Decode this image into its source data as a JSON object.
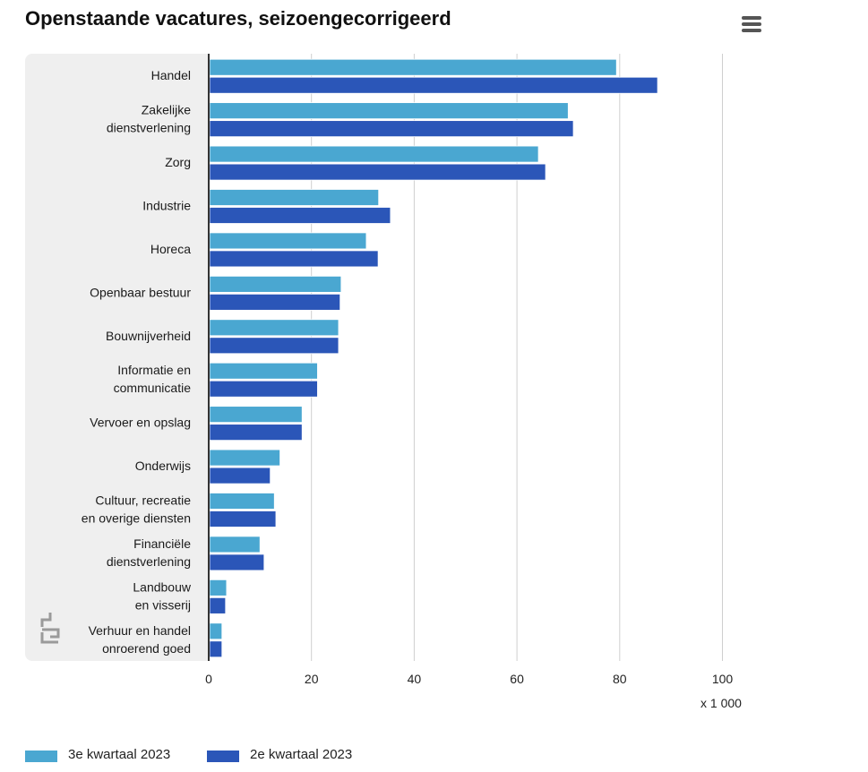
{
  "title": "Openstaande vacatures, seizoengecorrigeerd",
  "unit": "x 1 000",
  "colors": {
    "series1": "#4aa7d1",
    "series2": "#2b56b8",
    "panel": "#efefef",
    "grid": "#cfcfcf",
    "axis": "#333333"
  },
  "icons": {
    "menu": "hamburger-menu-icon",
    "logo": "cbs-logo"
  },
  "chart_data": {
    "type": "bar",
    "orientation": "horizontal",
    "categories": [
      [
        "Handel"
      ],
      [
        "Zakelijke",
        "dienstverlening"
      ],
      [
        "Zorg"
      ],
      [
        "Industrie"
      ],
      [
        "Horeca"
      ],
      [
        "Openbaar bestuur"
      ],
      [
        "Bouwnijverheid"
      ],
      [
        "Informatie en",
        "communicatie"
      ],
      [
        "Vervoer en opslag"
      ],
      [
        "Onderwijs"
      ],
      [
        "Cultuur, recreatie",
        "en overige diensten"
      ],
      [
        "Financiële",
        "dienstverlening"
      ],
      [
        "Landbouw",
        "en visserij"
      ],
      [
        "Verhuur en handel",
        "onroerend goed"
      ]
    ],
    "series": [
      {
        "name": "3e kwartaal 2023",
        "values": [
          79.2,
          69.8,
          64,
          32.9,
          30.5,
          25.6,
          25.1,
          21,
          18,
          13.7,
          12.6,
          9.8,
          3.3,
          2.4
        ]
      },
      {
        "name": "2e kwartaal 2023",
        "values": [
          87.2,
          70.8,
          65.4,
          35.2,
          32.8,
          25.4,
          25.1,
          21,
          18,
          11.8,
          12.9,
          10.6,
          3.1,
          2.4
        ]
      }
    ],
    "xlim": [
      0,
      100
    ],
    "xticks": [
      0,
      20,
      40,
      60,
      80,
      100
    ],
    "grid": true,
    "legend_position": "bottom-left"
  }
}
